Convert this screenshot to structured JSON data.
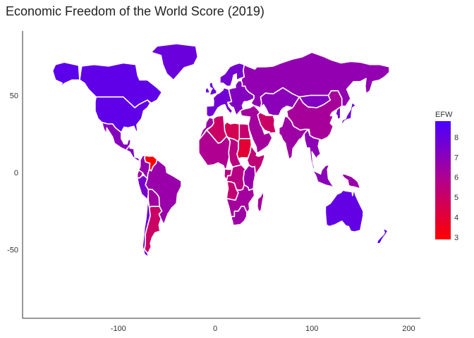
{
  "title": "Economic Freedom of the World Score (2019)",
  "chart_data": {
    "type": "choropleth",
    "title": "Economic Freedom of the World Score (2019)",
    "x_ticks": [
      "-100",
      "0",
      "100",
      "200"
    ],
    "y_ticks": [
      "50",
      "0",
      "-50"
    ],
    "xlim": [
      -195,
      210
    ],
    "ylim": [
      -95,
      85
    ],
    "colorbar": {
      "title": "EFW",
      "range": [
        2.9,
        8.8
      ],
      "ticks": [
        "8",
        "7",
        "6",
        "5",
        "4",
        "3"
      ],
      "color_low": "#ff0000",
      "color_high": "#4a00ff"
    },
    "regions": [
      {
        "name": "Canada",
        "value": 8.2
      },
      {
        "name": "Alaska",
        "value": 8.3
      },
      {
        "name": "Greenland",
        "value": 7.9
      },
      {
        "name": "United States",
        "value": 8.2
      },
      {
        "name": "Mexico",
        "value": 7.1
      },
      {
        "name": "Central America",
        "value": 7.3
      },
      {
        "name": "Venezuela",
        "value": 2.9
      },
      {
        "name": "Colombia",
        "value": 6.7
      },
      {
        "name": "Ecuador",
        "value": 6.4
      },
      {
        "name": "Peru",
        "value": 7.5
      },
      {
        "name": "Brazil",
        "value": 6.6
      },
      {
        "name": "Bolivia",
        "value": 6.4
      },
      {
        "name": "Chile",
        "value": 7.8
      },
      {
        "name": "Argentina",
        "value": 5.0
      },
      {
        "name": "Western Europe",
        "value": 7.7
      },
      {
        "name": "Scandinavia",
        "value": 7.6
      },
      {
        "name": "UK and Ireland",
        "value": 8.0
      },
      {
        "name": "Eastern Europe",
        "value": 7.2
      },
      {
        "name": "Russia",
        "value": 6.8
      },
      {
        "name": "Kazakhstan",
        "value": 7.0
      },
      {
        "name": "Mongolia",
        "value": 7.2
      },
      {
        "name": "China",
        "value": 6.2
      },
      {
        "name": "Japan",
        "value": 7.8
      },
      {
        "name": "Korea",
        "value": 7.6
      },
      {
        "name": "Middle East",
        "value": 6.3
      },
      {
        "name": "Iran",
        "value": 5.0
      },
      {
        "name": "India",
        "value": 6.5
      },
      {
        "name": "Southeast Asia",
        "value": 6.9
      },
      {
        "name": "Indonesia",
        "value": 7.0
      },
      {
        "name": "Morocco",
        "value": 6.5
      },
      {
        "name": "Algeria",
        "value": 5.0
      },
      {
        "name": "Libya",
        "value": 4.6
      },
      {
        "name": "Egypt",
        "value": 5.2
      },
      {
        "name": "Sudan",
        "value": 4.0
      },
      {
        "name": "West Africa",
        "value": 6.0
      },
      {
        "name": "Central Africa",
        "value": 5.6
      },
      {
        "name": "Ethiopia",
        "value": 5.4
      },
      {
        "name": "East Africa",
        "value": 6.6
      },
      {
        "name": "DR Congo",
        "value": 5.7
      },
      {
        "name": "Angola",
        "value": 5.3
      },
      {
        "name": "Southern Africa",
        "value": 6.3
      },
      {
        "name": "South Africa",
        "value": 6.5
      },
      {
        "name": "Madagascar",
        "value": 6.3
      },
      {
        "name": "Australia",
        "value": 8.1
      },
      {
        "name": "New Zealand",
        "value": 8.5
      },
      {
        "name": "Papua New Guinea",
        "value": 6.6
      }
    ]
  }
}
